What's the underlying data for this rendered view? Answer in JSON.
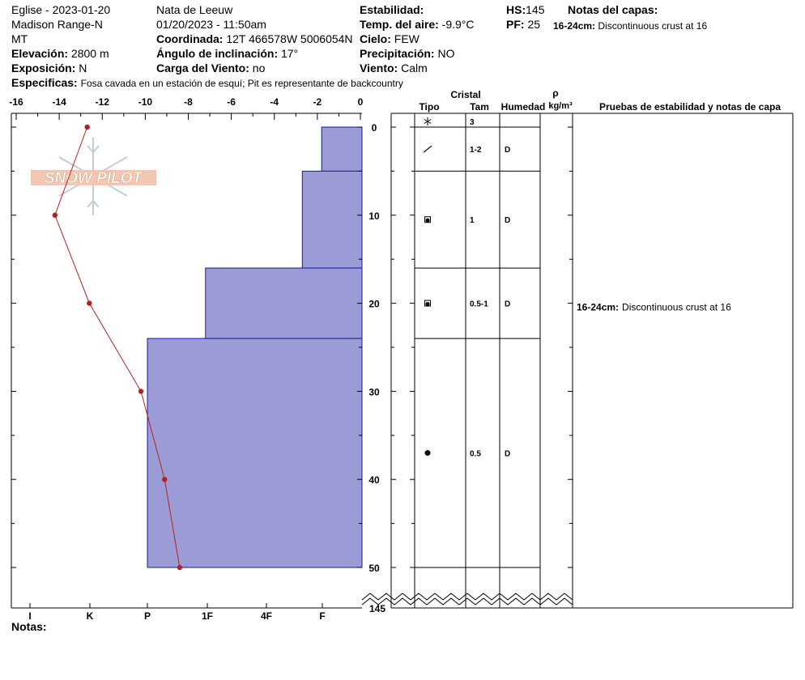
{
  "header": {
    "col1": {
      "title": "Eglise - 2023-01-20",
      "range": "Madison Range-N",
      "state": "MT",
      "elevation_label": "Elevación:",
      "elevation": "2800 m",
      "aspect_label": "Exposición:",
      "aspect": "N"
    },
    "col2": {
      "observer": "Nata de Leeuw",
      "datetime": "01/20/2023 - 11:50am",
      "coord_label": "Coordinada:",
      "coord": "12T 466578W 5006054N",
      "slope_label": "Ángulo de inclinación:",
      "slope": "17°",
      "wind_load_label": "Carga del Viento:",
      "wind_load": "no"
    },
    "col3": {
      "stability_label": "Estabilidad:",
      "air_temp_label": "Temp. del aire:",
      "air_temp": "-9.9°C",
      "sky_label": "Cielo:",
      "sky": "FEW",
      "precip_label": "Precipitación:",
      "precip": "NO",
      "wind_label": "Viento:",
      "wind": "Calm"
    },
    "col4": {
      "hs_label": "HS:",
      "hs": "145",
      "pf_label": "PF:",
      "pf": "25",
      "layer_notes_label": "Notas del capas:",
      "layer_note_depth": "16-24cm:",
      "layer_note_text": "Discontinuous crust at 16"
    },
    "specifics_label": "Especificas:",
    "specifics": "Fosa cavada en un estación de esquí; Pit es representante de backcountry",
    "notes_label": "Notas:"
  },
  "watermark": {
    "text": "SNOW PILOT",
    "icon": "snowflake-icon"
  },
  "table": {
    "headers": {
      "crystal": "Cristal",
      "type": "Tipo",
      "size": "Tam",
      "moisture": "Humedad",
      "rho": "ρ",
      "density_unit": "kg/m³",
      "tests": "Pruebas de estabilidad y notas de capa"
    },
    "rows": [
      {
        "depth_center": 0,
        "symbol": "snowflake-icon",
        "size": "3",
        "moisture": ""
      },
      {
        "depth_center": 2.5,
        "symbol": "decomposing-fragments-icon",
        "size": "1-2",
        "moisture": "D"
      },
      {
        "depth_center": 10.5,
        "symbol": "faceted-rounded-icon",
        "size": "1",
        "moisture": "D"
      },
      {
        "depth_center": 20,
        "symbol": "faceted-rounded-icon",
        "size": "0.5-1",
        "moisture": "D"
      },
      {
        "depth_center": 37,
        "symbol": "rounded-grains-icon",
        "size": "0.5",
        "moisture": "D"
      }
    ],
    "test_notes": [
      {
        "depth": 20,
        "depth_label": "16-24cm:",
        "text": "Discontinuous crust at 16"
      }
    ]
  },
  "chart_data": {
    "type": "snow-profile",
    "temperature_axis": {
      "ticks": [
        -16,
        -14,
        -12,
        -10,
        -8,
        -6,
        -4,
        -2,
        0
      ],
      "range": [
        -16,
        0
      ]
    },
    "depth_axis": {
      "ticks": [
        0,
        10,
        20,
        30,
        40,
        50
      ],
      "bottom_label": "145",
      "range": [
        0,
        55
      ]
    },
    "hardness_axis": {
      "ticks": [
        "I",
        "K",
        "P",
        "1F",
        "4F",
        "F"
      ]
    },
    "temperature_profile": {
      "color": "#b22222",
      "depth": [
        0,
        10,
        20,
        30,
        40,
        50
      ],
      "temp": [
        -12.7,
        -14.2,
        -12.6,
        -10.2,
        -9.1,
        -8.4
      ]
    },
    "layers": [
      {
        "top": 0,
        "bottom": 5,
        "hardness_temp": -1.8
      },
      {
        "top": 5,
        "bottom": 16,
        "hardness_temp": -2.7
      },
      {
        "top": 16,
        "bottom": 24,
        "hardness_temp": -7.2
      },
      {
        "top": 24,
        "bottom": 50,
        "hardness_temp": -9.9
      }
    ],
    "layer_boundaries": [
      0,
      5,
      16,
      24,
      50
    ],
    "layer_fill": "#9b9bd6",
    "layer_stroke": "#1a1aa0"
  }
}
